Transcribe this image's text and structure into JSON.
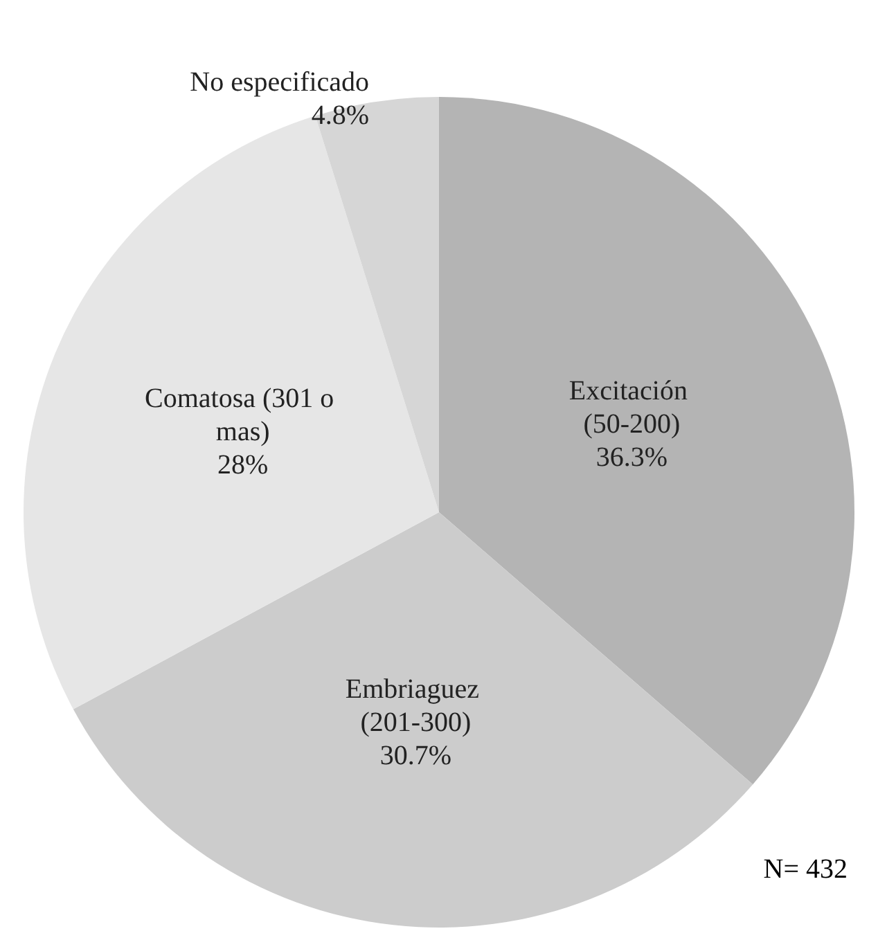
{
  "chart_data": {
    "type": "pie",
    "categories": [
      "Excitación (50-200)",
      "Embriaguez (201-300)",
      "Comatosa (301 o mas)",
      "No especificado"
    ],
    "values": [
      36.3,
      30.7,
      28,
      4.8
    ],
    "colors": [
      "#b4b4b4",
      "#cccccc",
      "#e6e6e6",
      "#d6d6d6"
    ],
    "value_labels": [
      "36.3%",
      "30.7%",
      "28%",
      "4.8%"
    ],
    "annotations": [
      "N= 432"
    ],
    "legend": false
  }
}
